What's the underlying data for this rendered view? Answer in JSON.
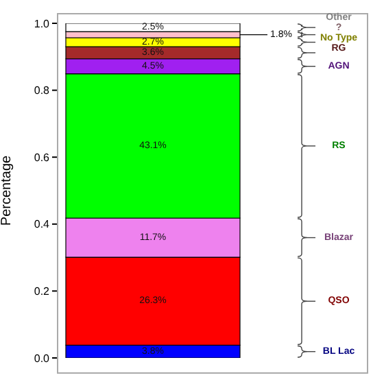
{
  "chart_data": {
    "type": "bar",
    "stacked": true,
    "ylabel": "Percentage",
    "categories": [
      null
    ],
    "ylim": [
      0,
      1
    ],
    "yticks": [
      {
        "value": 0,
        "label": "0.0"
      },
      {
        "value": 0.2,
        "label": "0.2"
      },
      {
        "value": 0.4,
        "label": "0.4"
      },
      {
        "value": 0.6,
        "label": "0.6"
      },
      {
        "value": 0.8,
        "label": "0.8"
      },
      {
        "value": 1,
        "label": "1.0"
      }
    ],
    "series": [
      {
        "name": "BL Lac",
        "color": "#0000ff",
        "values": [
          0.038
        ],
        "value_labels": [
          "3.8%"
        ]
      },
      {
        "name": "QSO",
        "color": "#ff0000",
        "values": [
          0.263
        ],
        "value_labels": [
          "26.3%"
        ]
      },
      {
        "name": "Blazar",
        "color": "#ee82ee",
        "values": [
          0.117
        ],
        "value_labels": [
          "11.7%"
        ]
      },
      {
        "name": "RS",
        "color": "#00ff00",
        "values": [
          0.431
        ],
        "value_labels": [
          "43.1%"
        ]
      },
      {
        "name": "AGN",
        "color": "#a020f0",
        "values": [
          0.045
        ],
        "value_labels": [
          "4.5%"
        ]
      },
      {
        "name": "RG",
        "color": "#a52a2a",
        "values": [
          0.036
        ],
        "value_labels": [
          "3.6%"
        ]
      },
      {
        "name": "No Type",
        "color": "#ffff00",
        "values": [
          0.027
        ],
        "value_labels": [
          "2.7%"
        ]
      },
      {
        "name": "?",
        "color": "#ffc0cb",
        "values": [
          0.018
        ],
        "value_labels": [
          "1.8%"
        ]
      },
      {
        "name": "Other",
        "color": "#ffffff",
        "values": [
          0.025
        ],
        "value_labels": [
          "2.5%"
        ]
      }
    ]
  }
}
